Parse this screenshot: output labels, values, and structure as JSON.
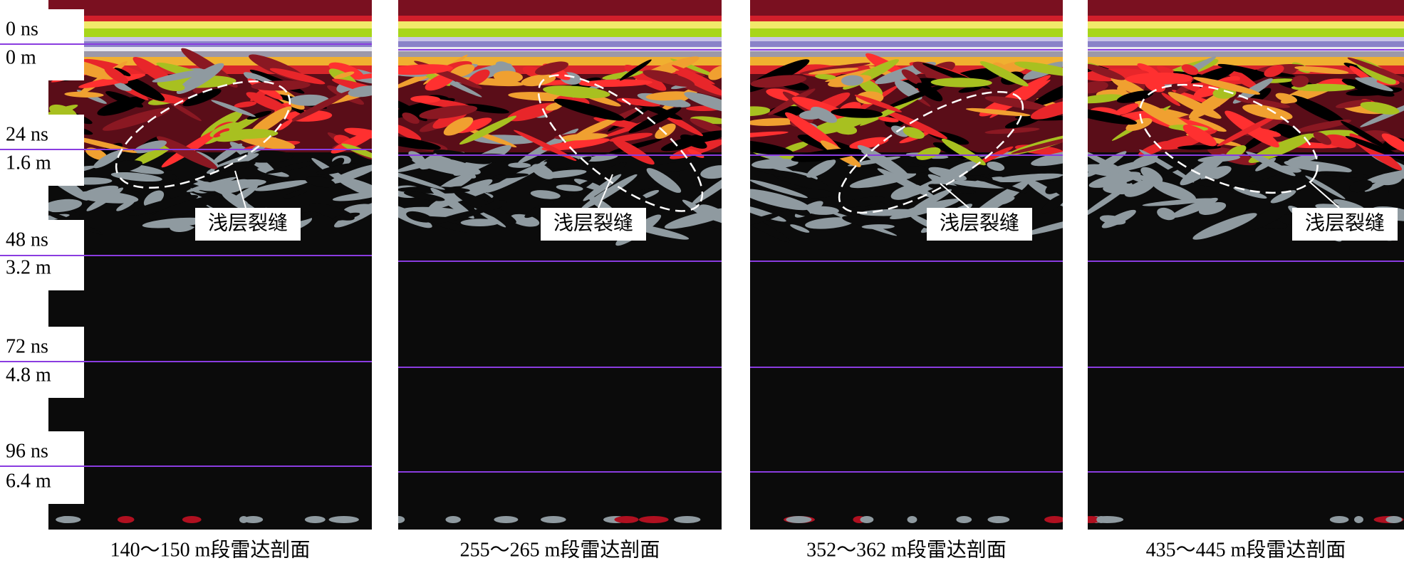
{
  "axis_labels": [
    {
      "time": "0 ns",
      "depth": "0 m"
    },
    {
      "time": "24 ns",
      "depth": "1.6 m"
    },
    {
      "time": "48 ns",
      "depth": "3.2 m"
    },
    {
      "time": "72 ns",
      "depth": "4.8 m"
    },
    {
      "time": "96 ns",
      "depth": "6.4 m"
    }
  ],
  "panels": [
    {
      "caption": "140～150 m段雷达剖面",
      "annotation": "浅层裂缝"
    },
    {
      "caption": "255～265 m段雷达剖面",
      "annotation": "浅层裂缝"
    },
    {
      "caption": "352～362 m段雷达剖面",
      "annotation": "浅层裂缝"
    },
    {
      "caption": "435～445 m段雷达剖面",
      "annotation": "浅层裂缝"
    }
  ]
}
